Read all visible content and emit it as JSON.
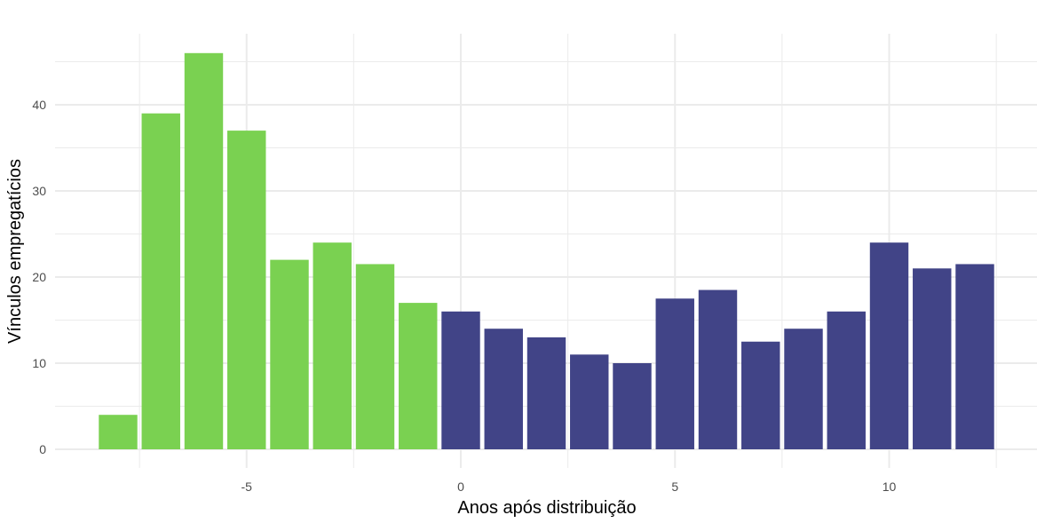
{
  "chart_data": {
    "type": "bar",
    "title": "",
    "xlabel": "Anos após distribuição",
    "ylabel": "Vínculos empregatícios",
    "xlim": [
      -9,
      13
    ],
    "ylim": [
      0,
      48
    ],
    "x_ticks": [
      -5,
      0,
      5,
      10
    ],
    "y_ticks": [
      0,
      10,
      20,
      30,
      40
    ],
    "grid": true,
    "colors": {
      "before": "#7AD151",
      "after": "#414487"
    },
    "series": [
      {
        "name": "",
        "x": [
          -8,
          -7,
          -6,
          -5,
          -4,
          -3,
          -2,
          -1,
          0,
          1,
          2,
          3,
          4,
          5,
          6,
          7,
          8,
          9,
          10,
          11,
          12
        ],
        "values": [
          4,
          39,
          46,
          37,
          22,
          24,
          21.5,
          17,
          16,
          14,
          13,
          11,
          10,
          17.5,
          18.5,
          12.5,
          14,
          16,
          24,
          21,
          21.5
        ],
        "group": [
          "before",
          "before",
          "before",
          "before",
          "before",
          "before",
          "before",
          "before",
          "after",
          "after",
          "after",
          "after",
          "after",
          "after",
          "after",
          "after",
          "after",
          "after",
          "after",
          "after",
          "after"
        ]
      }
    ]
  }
}
